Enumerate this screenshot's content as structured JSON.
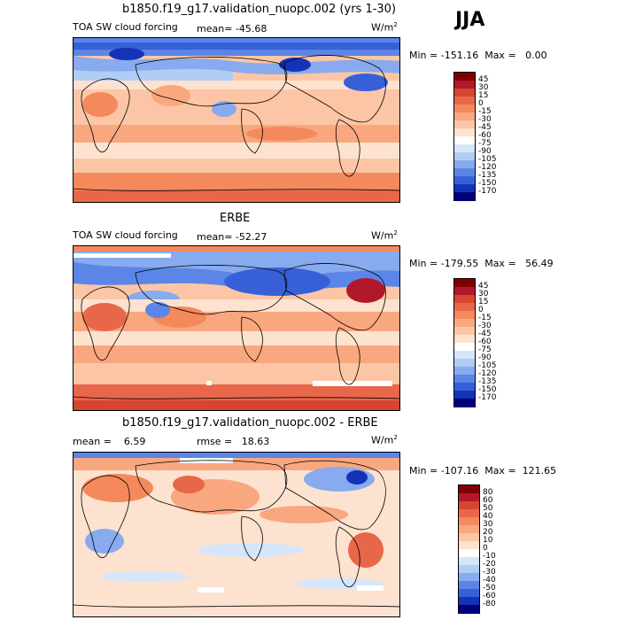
{
  "season": "JJA",
  "units": "W/m",
  "units_exp": "2",
  "panels": [
    {
      "title": "b1850.f19_g17.validation_nuopc.002 (yrs 1-30)",
      "variable": "TOA SW cloud forcing",
      "mean_label": "mean=",
      "mean": "-45.68",
      "min_label": "Min =",
      "min": "-151.16",
      "max_label": "Max =",
      "max": "0.00",
      "colorbar": {
        "ticks": [
          "45",
          "30",
          "15",
          "0",
          "-15",
          "-30",
          "-45",
          "-60",
          "-75",
          "-90",
          "-105",
          "-120",
          "-135",
          "-150",
          "-170"
        ],
        "colors": [
          "#800000",
          "#b2182b",
          "#d6452f",
          "#e8674a",
          "#f4895c",
          "#f9a77f",
          "#fcc6a6",
          "#fde2cf",
          "#ffffff",
          "#d5e6fa",
          "#b0cdf5",
          "#87abee",
          "#5b85e6",
          "#3760d8",
          "#1433b8",
          "#00007a"
        ]
      }
    },
    {
      "title": "ERBE",
      "variable": "TOA SW cloud forcing",
      "mean_label": "mean=",
      "mean": "-52.27",
      "min_label": "Min =",
      "min": "-179.55",
      "max_label": "Max =",
      "max": "56.49",
      "colorbar": {
        "ticks": [
          "45",
          "30",
          "15",
          "0",
          "-15",
          "-30",
          "-45",
          "-60",
          "-75",
          "-90",
          "-105",
          "-120",
          "-135",
          "-150",
          "-170"
        ],
        "colors": [
          "#800000",
          "#b2182b",
          "#d6452f",
          "#e8674a",
          "#f4895c",
          "#f9a77f",
          "#fcc6a6",
          "#fde2cf",
          "#ffffff",
          "#d5e6fa",
          "#b0cdf5",
          "#87abee",
          "#5b85e6",
          "#3760d8",
          "#1433b8",
          "#00007a"
        ]
      }
    },
    {
      "title": "b1850.f19_g17.validation_nuopc.002 - ERBE",
      "mean_label": "mean =",
      "mean": "6.59",
      "rmse_label": "rmse =",
      "rmse": "18.63",
      "min_label": "Min =",
      "min": "-107.16",
      "max_label": "Max =",
      "max": "121.65",
      "colorbar": {
        "ticks": [
          "80",
          "60",
          "50",
          "40",
          "30",
          "20",
          "10",
          "0",
          "-10",
          "-20",
          "-30",
          "-40",
          "-50",
          "-60",
          "-80"
        ],
        "colors": [
          "#800000",
          "#b2182b",
          "#d6452f",
          "#e8674a",
          "#f4895c",
          "#f9a77f",
          "#fcc6a6",
          "#fde2cf",
          "#ffffff",
          "#d5e6fa",
          "#b0cdf5",
          "#87abee",
          "#5b85e6",
          "#3760d8",
          "#1433b8",
          "#00007a"
        ]
      }
    }
  ],
  "chart_data": [
    {
      "type": "heatmap",
      "title": "b1850.f19_g17.validation_nuopc.002 (yrs 1-30)",
      "variable": "TOA SW cloud forcing",
      "units": "W/m2",
      "mean": -45.68,
      "min": -151.16,
      "max": 0.0,
      "levels": [
        45,
        30,
        15,
        0,
        -15,
        -30,
        -45,
        -60,
        -75,
        -90,
        -105,
        -120,
        -135,
        -150,
        -170
      ]
    },
    {
      "type": "heatmap",
      "title": "ERBE",
      "variable": "TOA SW cloud forcing",
      "units": "W/m2",
      "mean": -52.27,
      "min": -179.55,
      "max": 56.49,
      "levels": [
        45,
        30,
        15,
        0,
        -15,
        -30,
        -45,
        -60,
        -75,
        -90,
        -105,
        -120,
        -135,
        -150,
        -170
      ]
    },
    {
      "type": "heatmap",
      "title": "b1850.f19_g17.validation_nuopc.002 - ERBE",
      "units": "W/m2",
      "mean": 6.59,
      "rmse": 18.63,
      "min": -107.16,
      "max": 121.65,
      "levels": [
        80,
        60,
        50,
        40,
        30,
        20,
        10,
        0,
        -10,
        -20,
        -30,
        -40,
        -50,
        -60,
        -80
      ]
    }
  ]
}
